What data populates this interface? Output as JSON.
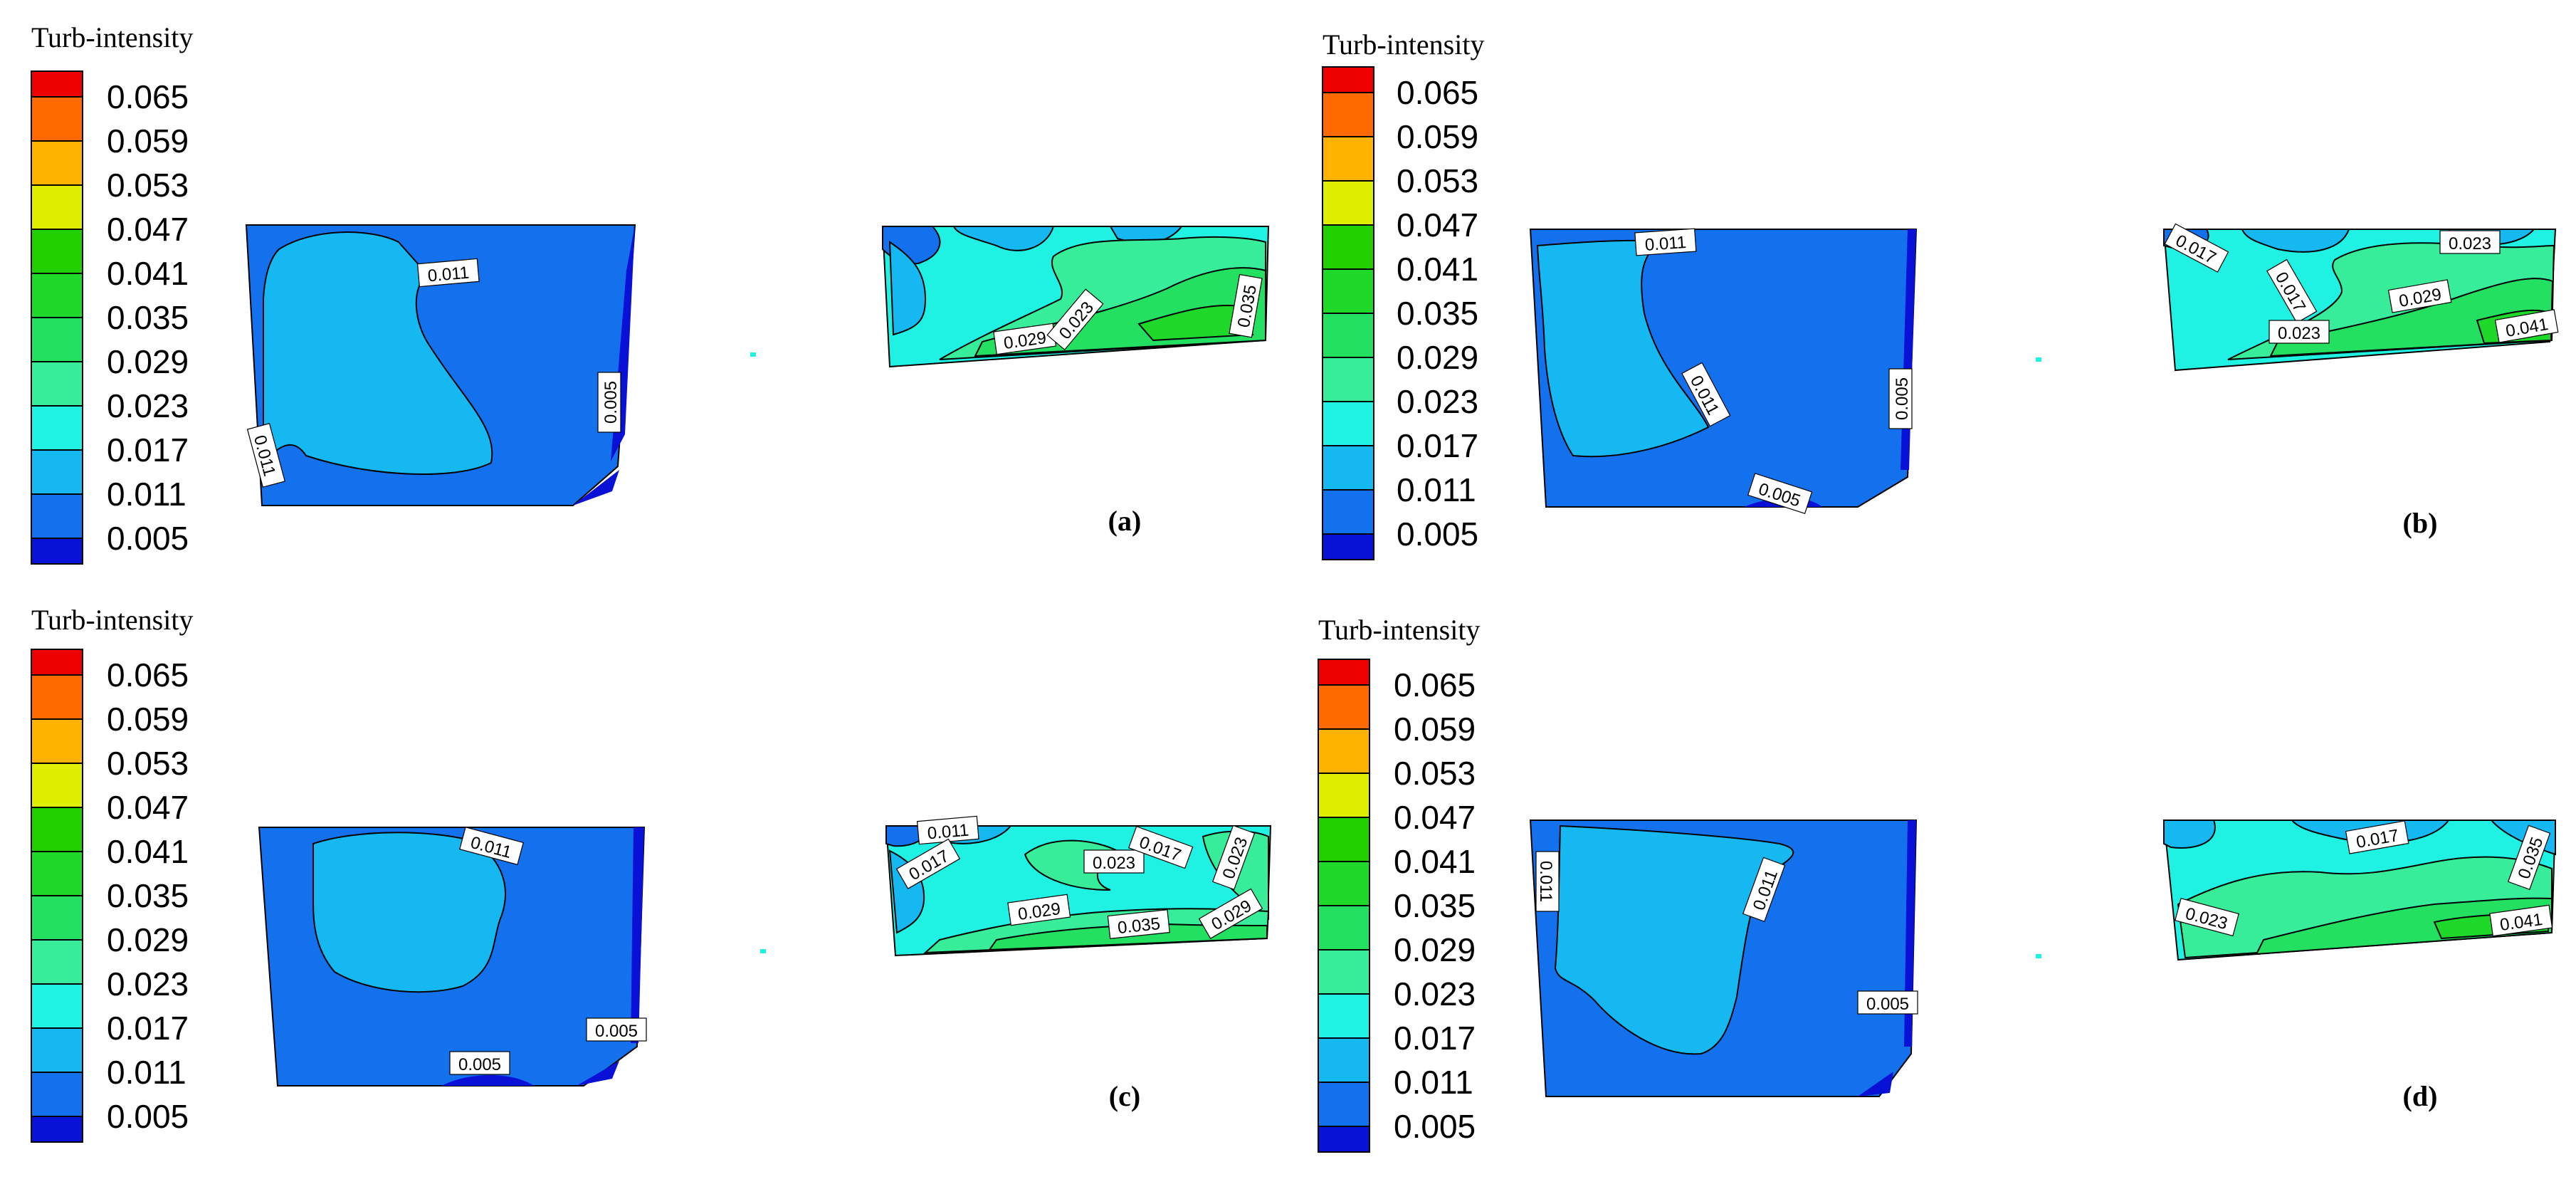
{
  "figure": {
    "colorbar_title": "Turb-intensity",
    "colorbar_levels": [
      "0.065",
      "0.059",
      "0.053",
      "0.047",
      "0.041",
      "0.035",
      "0.029",
      "0.023",
      "0.017",
      "0.011",
      "0.005"
    ],
    "colors": [
      "#ef0000",
      "#ff6a00",
      "#ffb300",
      "#e0ee00",
      "#22d000",
      "#1ed82a",
      "#24e060",
      "#37ed99",
      "#1ff2e2",
      "#16b8f2",
      "#1471ee",
      "#0a11d6"
    ],
    "panels": [
      {
        "id": "a",
        "label": "(a)",
        "left_contour_labels": [
          "0.011",
          "0.011",
          "0.005"
        ],
        "right_contour_labels": [
          "0.029",
          "0.023",
          "0.035"
        ]
      },
      {
        "id": "b",
        "label": "(b)",
        "left_contour_labels": [
          "0.011",
          "0.011",
          "0.005",
          "0.005"
        ],
        "right_contour_labels": [
          "0.017",
          "0.017",
          "0.023",
          "0.029",
          "0.023",
          "0.041"
        ]
      },
      {
        "id": "c",
        "label": "(c)",
        "left_contour_labels": [
          "0.011",
          "0.005",
          "0.005"
        ],
        "right_contour_labels": [
          "0.011",
          "0.017",
          "0.023",
          "0.017",
          "0.023",
          "0.029",
          "0.035",
          "0.029"
        ]
      },
      {
        "id": "d",
        "label": "(d)",
        "left_contour_labels": [
          "0.011",
          "0.011",
          "0.005"
        ],
        "right_contour_labels": [
          "0.017",
          "0.035",
          "0.023",
          "0.041"
        ]
      }
    ]
  }
}
